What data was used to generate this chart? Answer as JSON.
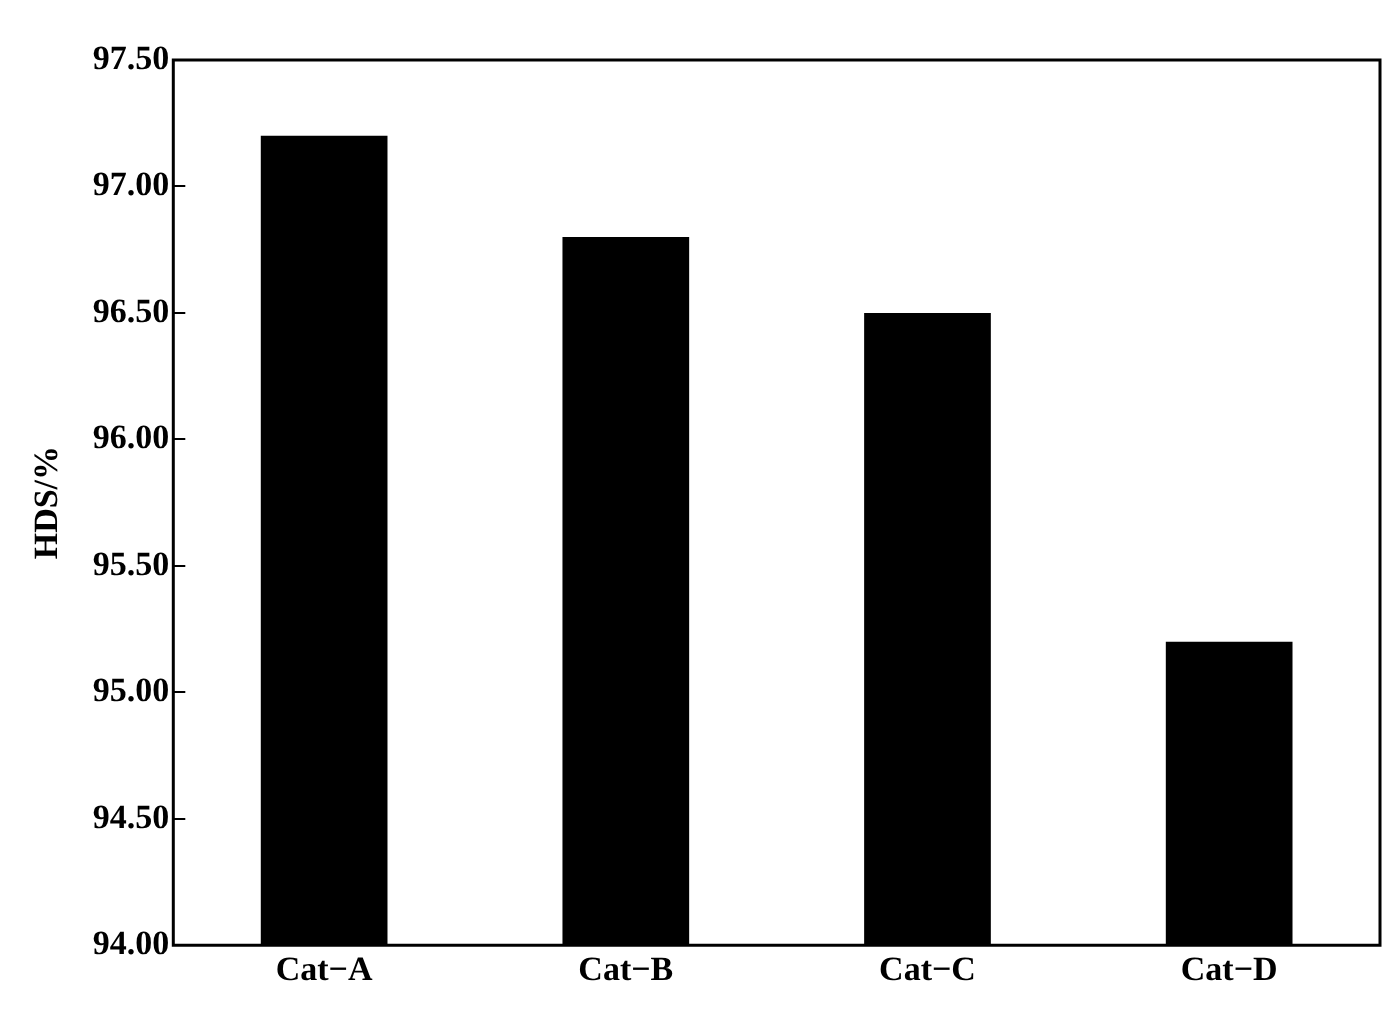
{
  "chart_data": {
    "type": "bar",
    "ylabel": "HDS/%",
    "categories": [
      "Cat−A",
      "Cat−B",
      "Cat−C",
      "Cat−D"
    ],
    "values": [
      97.2,
      96.8,
      96.5,
      95.2
    ],
    "color": "#000000",
    "ylim": [
      94,
      97.5
    ],
    "yticks": [
      {
        "value": 94,
        "label": "94.00"
      },
      {
        "value": 94.5,
        "label": "94.50"
      },
      {
        "value": 95,
        "label": "95.00"
      },
      {
        "value": 95.5,
        "label": "95.50"
      },
      {
        "value": 96,
        "label": "96.00"
      },
      {
        "value": 96.5,
        "label": "96.50"
      },
      {
        "value": 97,
        "label": "97.00"
      },
      {
        "value": 97.5,
        "label": "97.50"
      }
    ],
    "grid": false,
    "legend": false
  }
}
